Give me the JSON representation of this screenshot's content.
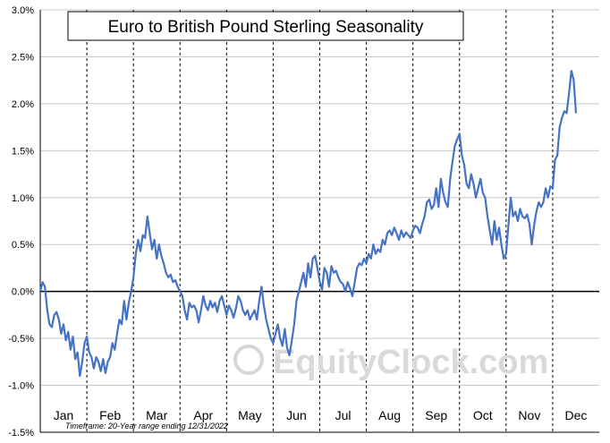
{
  "chart_data": {
    "type": "line",
    "title": "Euro to British Pound Sterling Seasonality",
    "xlabel": "",
    "ylabel": "",
    "ylim": [
      -1.5,
      3.0
    ],
    "yticks": [
      -1.5,
      -1.0,
      -0.5,
      0.0,
      0.5,
      1.0,
      1.5,
      2.0,
      2.5,
      3.0
    ],
    "ytick_labels": [
      "-1.5%",
      "-1.0%",
      "-0.5%",
      "0.0%",
      "0.5%",
      "1.0%",
      "1.5%",
      "2.0%",
      "2.5%",
      "3.0%"
    ],
    "months": [
      "Jan",
      "Feb",
      "Mar",
      "Apr",
      "May",
      "Jun",
      "Jul",
      "Aug",
      "Sep",
      "Oct",
      "Nov",
      "Dec"
    ],
    "xlim": [
      0,
      12
    ],
    "grid": {
      "horizontal": true,
      "vertical_month_dividers": true,
      "zero_line": true
    },
    "footnote": "Timeframe: 20-Year range ending 12/31/2022",
    "watermark": "EquityClock.com",
    "colors": {
      "line": "#4472C4",
      "grid": "#c8c8c8",
      "axis": "#000000"
    },
    "series": [
      {
        "values": [
          [
            0.0,
            0.0
          ],
          [
            0.05,
            0.1
          ],
          [
            0.1,
            0.05
          ],
          [
            0.15,
            -0.2
          ],
          [
            0.2,
            -0.35
          ],
          [
            0.25,
            -0.38
          ],
          [
            0.3,
            -0.25
          ],
          [
            0.35,
            -0.22
          ],
          [
            0.4,
            -0.3
          ],
          [
            0.45,
            -0.45
          ],
          [
            0.5,
            -0.35
          ],
          [
            0.55,
            -0.52
          ],
          [
            0.6,
            -0.43
          ],
          [
            0.65,
            -0.62
          ],
          [
            0.7,
            -0.48
          ],
          [
            0.75,
            -0.72
          ],
          [
            0.8,
            -0.65
          ],
          [
            0.85,
            -0.9
          ],
          [
            0.9,
            -0.75
          ],
          [
            0.95,
            -0.55
          ],
          [
            1.0,
            -0.48
          ],
          [
            1.05,
            -0.65
          ],
          [
            1.1,
            -0.7
          ],
          [
            1.15,
            -0.82
          ],
          [
            1.2,
            -0.7
          ],
          [
            1.25,
            -0.75
          ],
          [
            1.3,
            -0.85
          ],
          [
            1.35,
            -0.72
          ],
          [
            1.4,
            -0.87
          ],
          [
            1.45,
            -0.75
          ],
          [
            1.5,
            -0.7
          ],
          [
            1.55,
            -0.55
          ],
          [
            1.6,
            -0.62
          ],
          [
            1.65,
            -0.45
          ],
          [
            1.7,
            -0.3
          ],
          [
            1.75,
            -0.35
          ],
          [
            1.8,
            -0.1
          ],
          [
            1.85,
            -0.3
          ],
          [
            1.9,
            -0.12
          ],
          [
            1.95,
            0.0
          ],
          [
            2.0,
            0.15
          ],
          [
            2.05,
            0.4
          ],
          [
            2.1,
            0.55
          ],
          [
            2.15,
            0.43
          ],
          [
            2.2,
            0.6
          ],
          [
            2.25,
            0.57
          ],
          [
            2.3,
            0.8
          ],
          [
            2.35,
            0.62
          ],
          [
            2.4,
            0.45
          ],
          [
            2.45,
            0.55
          ],
          [
            2.5,
            0.35
          ],
          [
            2.55,
            0.5
          ],
          [
            2.6,
            0.38
          ],
          [
            2.65,
            0.3
          ],
          [
            2.7,
            0.2
          ],
          [
            2.75,
            0.15
          ],
          [
            2.8,
            0.18
          ],
          [
            2.85,
            0.1
          ],
          [
            2.9,
            0.12
          ],
          [
            2.95,
            0.05
          ],
          [
            3.0,
            0.0
          ],
          [
            3.05,
            -0.05
          ],
          [
            3.1,
            -0.2
          ],
          [
            3.15,
            -0.3
          ],
          [
            3.2,
            -0.12
          ],
          [
            3.25,
            -0.17
          ],
          [
            3.3,
            -0.15
          ],
          [
            3.35,
            -0.2
          ],
          [
            3.4,
            -0.33
          ],
          [
            3.45,
            -0.2
          ],
          [
            3.5,
            -0.05
          ],
          [
            3.55,
            -0.15
          ],
          [
            3.6,
            -0.2
          ],
          [
            3.65,
            -0.1
          ],
          [
            3.7,
            -0.17
          ],
          [
            3.75,
            -0.12
          ],
          [
            3.8,
            -0.22
          ],
          [
            3.85,
            -0.1
          ],
          [
            3.9,
            -0.05
          ],
          [
            3.95,
            -0.15
          ],
          [
            4.0,
            -0.25
          ],
          [
            4.05,
            -0.15
          ],
          [
            4.1,
            -0.2
          ],
          [
            4.15,
            -0.28
          ],
          [
            4.2,
            -0.18
          ],
          [
            4.25,
            -0.05
          ],
          [
            4.3,
            -0.1
          ],
          [
            4.35,
            -0.2
          ],
          [
            4.4,
            -0.25
          ],
          [
            4.45,
            -0.2
          ],
          [
            4.5,
            -0.3
          ],
          [
            4.55,
            -0.25
          ],
          [
            4.6,
            -0.2
          ],
          [
            4.65,
            -0.3
          ],
          [
            4.7,
            -0.1
          ],
          [
            4.75,
            0.05
          ],
          [
            4.8,
            -0.15
          ],
          [
            4.85,
            -0.3
          ],
          [
            4.9,
            -0.4
          ],
          [
            4.95,
            -0.5
          ],
          [
            5.0,
            -0.55
          ],
          [
            5.05,
            -0.45
          ],
          [
            5.1,
            -0.35
          ],
          [
            5.15,
            -0.5
          ],
          [
            5.2,
            -0.58
          ],
          [
            5.25,
            -0.4
          ],
          [
            5.3,
            -0.6
          ],
          [
            5.35,
            -0.68
          ],
          [
            5.4,
            -0.52
          ],
          [
            5.45,
            -0.35
          ],
          [
            5.5,
            -0.1
          ],
          [
            5.55,
            0.0
          ],
          [
            5.6,
            0.1
          ],
          [
            5.65,
            0.2
          ],
          [
            5.7,
            0.05
          ],
          [
            5.75,
            0.3
          ],
          [
            5.8,
            0.15
          ],
          [
            5.85,
            0.35
          ],
          [
            5.9,
            0.38
          ],
          [
            5.95,
            0.25
          ],
          [
            6.0,
            0.1
          ],
          [
            6.05,
            0.02
          ],
          [
            6.1,
            0.25
          ],
          [
            6.15,
            0.2
          ],
          [
            6.2,
            0.05
          ],
          [
            6.25,
            0.27
          ],
          [
            6.3,
            0.2
          ],
          [
            6.35,
            0.22
          ],
          [
            6.4,
            0.15
          ],
          [
            6.45,
            0.1
          ],
          [
            6.5,
            0.08
          ],
          [
            6.55,
            0.0
          ],
          [
            6.6,
            0.1
          ],
          [
            6.65,
            0.03
          ],
          [
            6.7,
            -0.05
          ],
          [
            6.75,
            0.1
          ],
          [
            6.8,
            0.25
          ],
          [
            6.85,
            0.3
          ],
          [
            6.9,
            0.28
          ],
          [
            6.95,
            0.35
          ],
          [
            7.0,
            0.3
          ],
          [
            7.05,
            0.4
          ],
          [
            7.1,
            0.35
          ],
          [
            7.15,
            0.5
          ],
          [
            7.2,
            0.4
          ],
          [
            7.25,
            0.45
          ],
          [
            7.3,
            0.42
          ],
          [
            7.35,
            0.55
          ],
          [
            7.4,
            0.5
          ],
          [
            7.45,
            0.62
          ],
          [
            7.5,
            0.65
          ],
          [
            7.55,
            0.6
          ],
          [
            7.6,
            0.68
          ],
          [
            7.65,
            0.62
          ],
          [
            7.7,
            0.55
          ],
          [
            7.75,
            0.65
          ],
          [
            7.8,
            0.58
          ],
          [
            7.85,
            0.63
          ],
          [
            7.9,
            0.6
          ],
          [
            7.95,
            0.57
          ],
          [
            8.0,
            0.65
          ],
          [
            8.05,
            0.7
          ],
          [
            8.1,
            0.68
          ],
          [
            8.15,
            0.62
          ],
          [
            8.2,
            0.72
          ],
          [
            8.25,
            0.8
          ],
          [
            8.3,
            0.95
          ],
          [
            8.35,
            0.98
          ],
          [
            8.4,
            0.88
          ],
          [
            8.45,
            0.92
          ],
          [
            8.5,
            1.1
          ],
          [
            8.55,
            0.9
          ],
          [
            8.6,
            1.2
          ],
          [
            8.65,
            1.05
          ],
          [
            8.7,
            0.95
          ],
          [
            8.75,
            0.9
          ],
          [
            8.8,
            1.2
          ],
          [
            8.85,
            1.38
          ],
          [
            8.9,
            1.55
          ],
          [
            8.95,
            1.62
          ],
          [
            9.0,
            1.68
          ],
          [
            9.05,
            1.45
          ],
          [
            9.1,
            1.35
          ],
          [
            9.15,
            1.15
          ],
          [
            9.2,
            1.1
          ],
          [
            9.25,
            1.25
          ],
          [
            9.3,
            1.15
          ],
          [
            9.35,
            1.0
          ],
          [
            9.4,
            1.1
          ],
          [
            9.45,
            1.2
          ],
          [
            9.5,
            1.05
          ],
          [
            9.55,
            1.0
          ],
          [
            9.6,
            0.8
          ],
          [
            9.65,
            0.65
          ],
          [
            9.7,
            0.5
          ],
          [
            9.75,
            0.75
          ],
          [
            9.8,
            0.55
          ],
          [
            9.85,
            0.68
          ],
          [
            9.9,
            0.5
          ],
          [
            9.95,
            0.35
          ],
          [
            10.0,
            0.4
          ],
          [
            10.05,
            0.7
          ],
          [
            10.1,
            1.0
          ],
          [
            10.15,
            0.8
          ],
          [
            10.2,
            0.85
          ],
          [
            10.25,
            0.75
          ],
          [
            10.3,
            0.88
          ],
          [
            10.35,
            0.8
          ],
          [
            10.4,
            0.78
          ],
          [
            10.45,
            0.82
          ],
          [
            10.5,
            0.72
          ],
          [
            10.55,
            0.5
          ],
          [
            10.6,
            0.7
          ],
          [
            10.65,
            0.85
          ],
          [
            10.7,
            0.95
          ],
          [
            10.75,
            0.9
          ],
          [
            10.8,
            0.95
          ],
          [
            10.85,
            1.1
          ],
          [
            10.9,
            1.0
          ],
          [
            10.95,
            1.12
          ],
          [
            11.0,
            1.1
          ],
          [
            11.05,
            1.4
          ],
          [
            11.1,
            1.45
          ],
          [
            11.15,
            1.75
          ],
          [
            11.2,
            1.85
          ],
          [
            11.25,
            1.92
          ],
          [
            11.3,
            1.9
          ],
          [
            11.35,
            2.1
          ],
          [
            11.4,
            2.35
          ],
          [
            11.45,
            2.25
          ],
          [
            11.5,
            1.9
          ]
        ]
      }
    ]
  }
}
